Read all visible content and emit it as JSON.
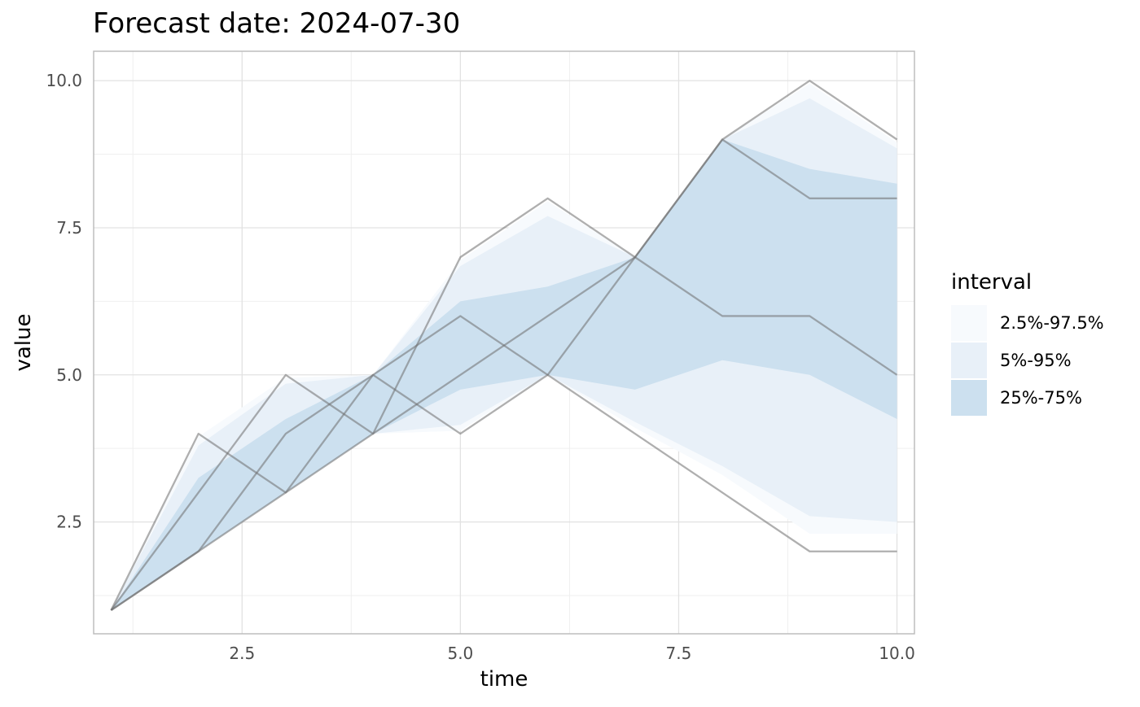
{
  "chart_data": {
    "type": "area",
    "title": "Forecast date: 2024-07-30",
    "xlabel": "time",
    "ylabel": "value",
    "xlim": [
      0.8,
      10.2
    ],
    "ylim": [
      0.6,
      10.5
    ],
    "x_ticks": [
      2.5,
      5.0,
      7.5,
      10.0
    ],
    "x_tick_labels": [
      "2.5",
      "5.0",
      "7.5",
      "10.0"
    ],
    "y_ticks": [
      2.5,
      5.0,
      7.5,
      10.0
    ],
    "y_tick_labels": [
      "2.5",
      "5.0",
      "7.5",
      "10.0"
    ],
    "x": [
      1,
      2,
      3,
      4,
      5,
      6,
      7,
      8,
      9,
      10
    ],
    "intervals": [
      {
        "name": "2.5%-97.5%",
        "color": "#F7FAFD",
        "lower": [
          1,
          2,
          3,
          4,
          4.05,
          5,
          4.1,
          3.3,
          2.3,
          2.3
        ],
        "upper": [
          1,
          3.95,
          4.95,
          5.0,
          6.95,
          7.95,
          7,
          9,
          9.95,
          8.95
        ]
      },
      {
        "name": "5%-95%",
        "color": "#E8F0F8",
        "lower": [
          1,
          2,
          3,
          4,
          4.15,
          5,
          4.2,
          3.45,
          2.6,
          2.5
        ],
        "upper": [
          1,
          3.8,
          4.85,
          5.0,
          6.85,
          7.7,
          7,
          9,
          9.7,
          8.85
        ]
      },
      {
        "name": "25%-75%",
        "color": "#CCE0EF",
        "lower": [
          1,
          2,
          3,
          4,
          4.75,
          5,
          4.75,
          5.25,
          5,
          4.25
        ],
        "upper": [
          1,
          3.25,
          4.25,
          5,
          6.25,
          6.5,
          7,
          9,
          8.5,
          8.25
        ]
      }
    ],
    "trajectories": [
      [
        1,
        4,
        3,
        4,
        5,
        6,
        7,
        9,
        10,
        9
      ],
      [
        1,
        3,
        5,
        4,
        7,
        8,
        7,
        9,
        8,
        8
      ],
      [
        1,
        2,
        4,
        5,
        6,
        5,
        7,
        6,
        6,
        5
      ],
      [
        1,
        2,
        3,
        5,
        4,
        5,
        4,
        3,
        2,
        2
      ]
    ],
    "trajectory_color": "#6E6E6E",
    "legend": {
      "title": "interval",
      "position": "right"
    },
    "grid": true
  }
}
